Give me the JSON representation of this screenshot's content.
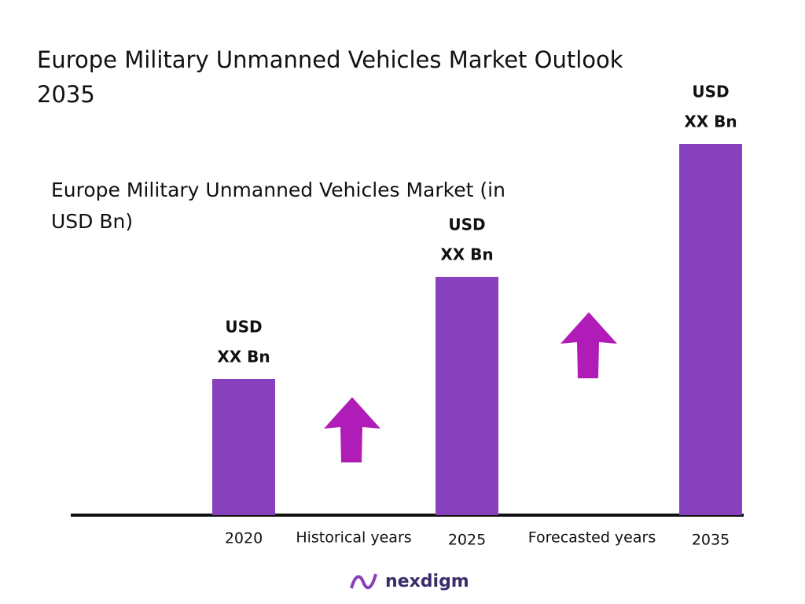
{
  "chart_data": {
    "type": "bar",
    "title": [
      "Europe Military Unmanned Vehicles Market Outlook",
      "2035"
    ],
    "subtitle": [
      "Europe Military Unmanned Vehicles Market (in",
      "USD Bn)"
    ],
    "categories": [
      "2020",
      "2025",
      "2035"
    ],
    "values": [
      173,
      303,
      472
    ],
    "ylim": [
      0,
      472
    ],
    "color": "#8741bd",
    "bar_labels": [
      [
        "USD",
        "XX Bn"
      ],
      [
        "USD",
        "XX Bn"
      ],
      [
        "USD",
        "XX Bn"
      ]
    ],
    "period_labels": [
      "Historical years",
      "Forecasted years"
    ],
    "arrow_color": "#b01cb8",
    "logo": "nexdigm"
  }
}
